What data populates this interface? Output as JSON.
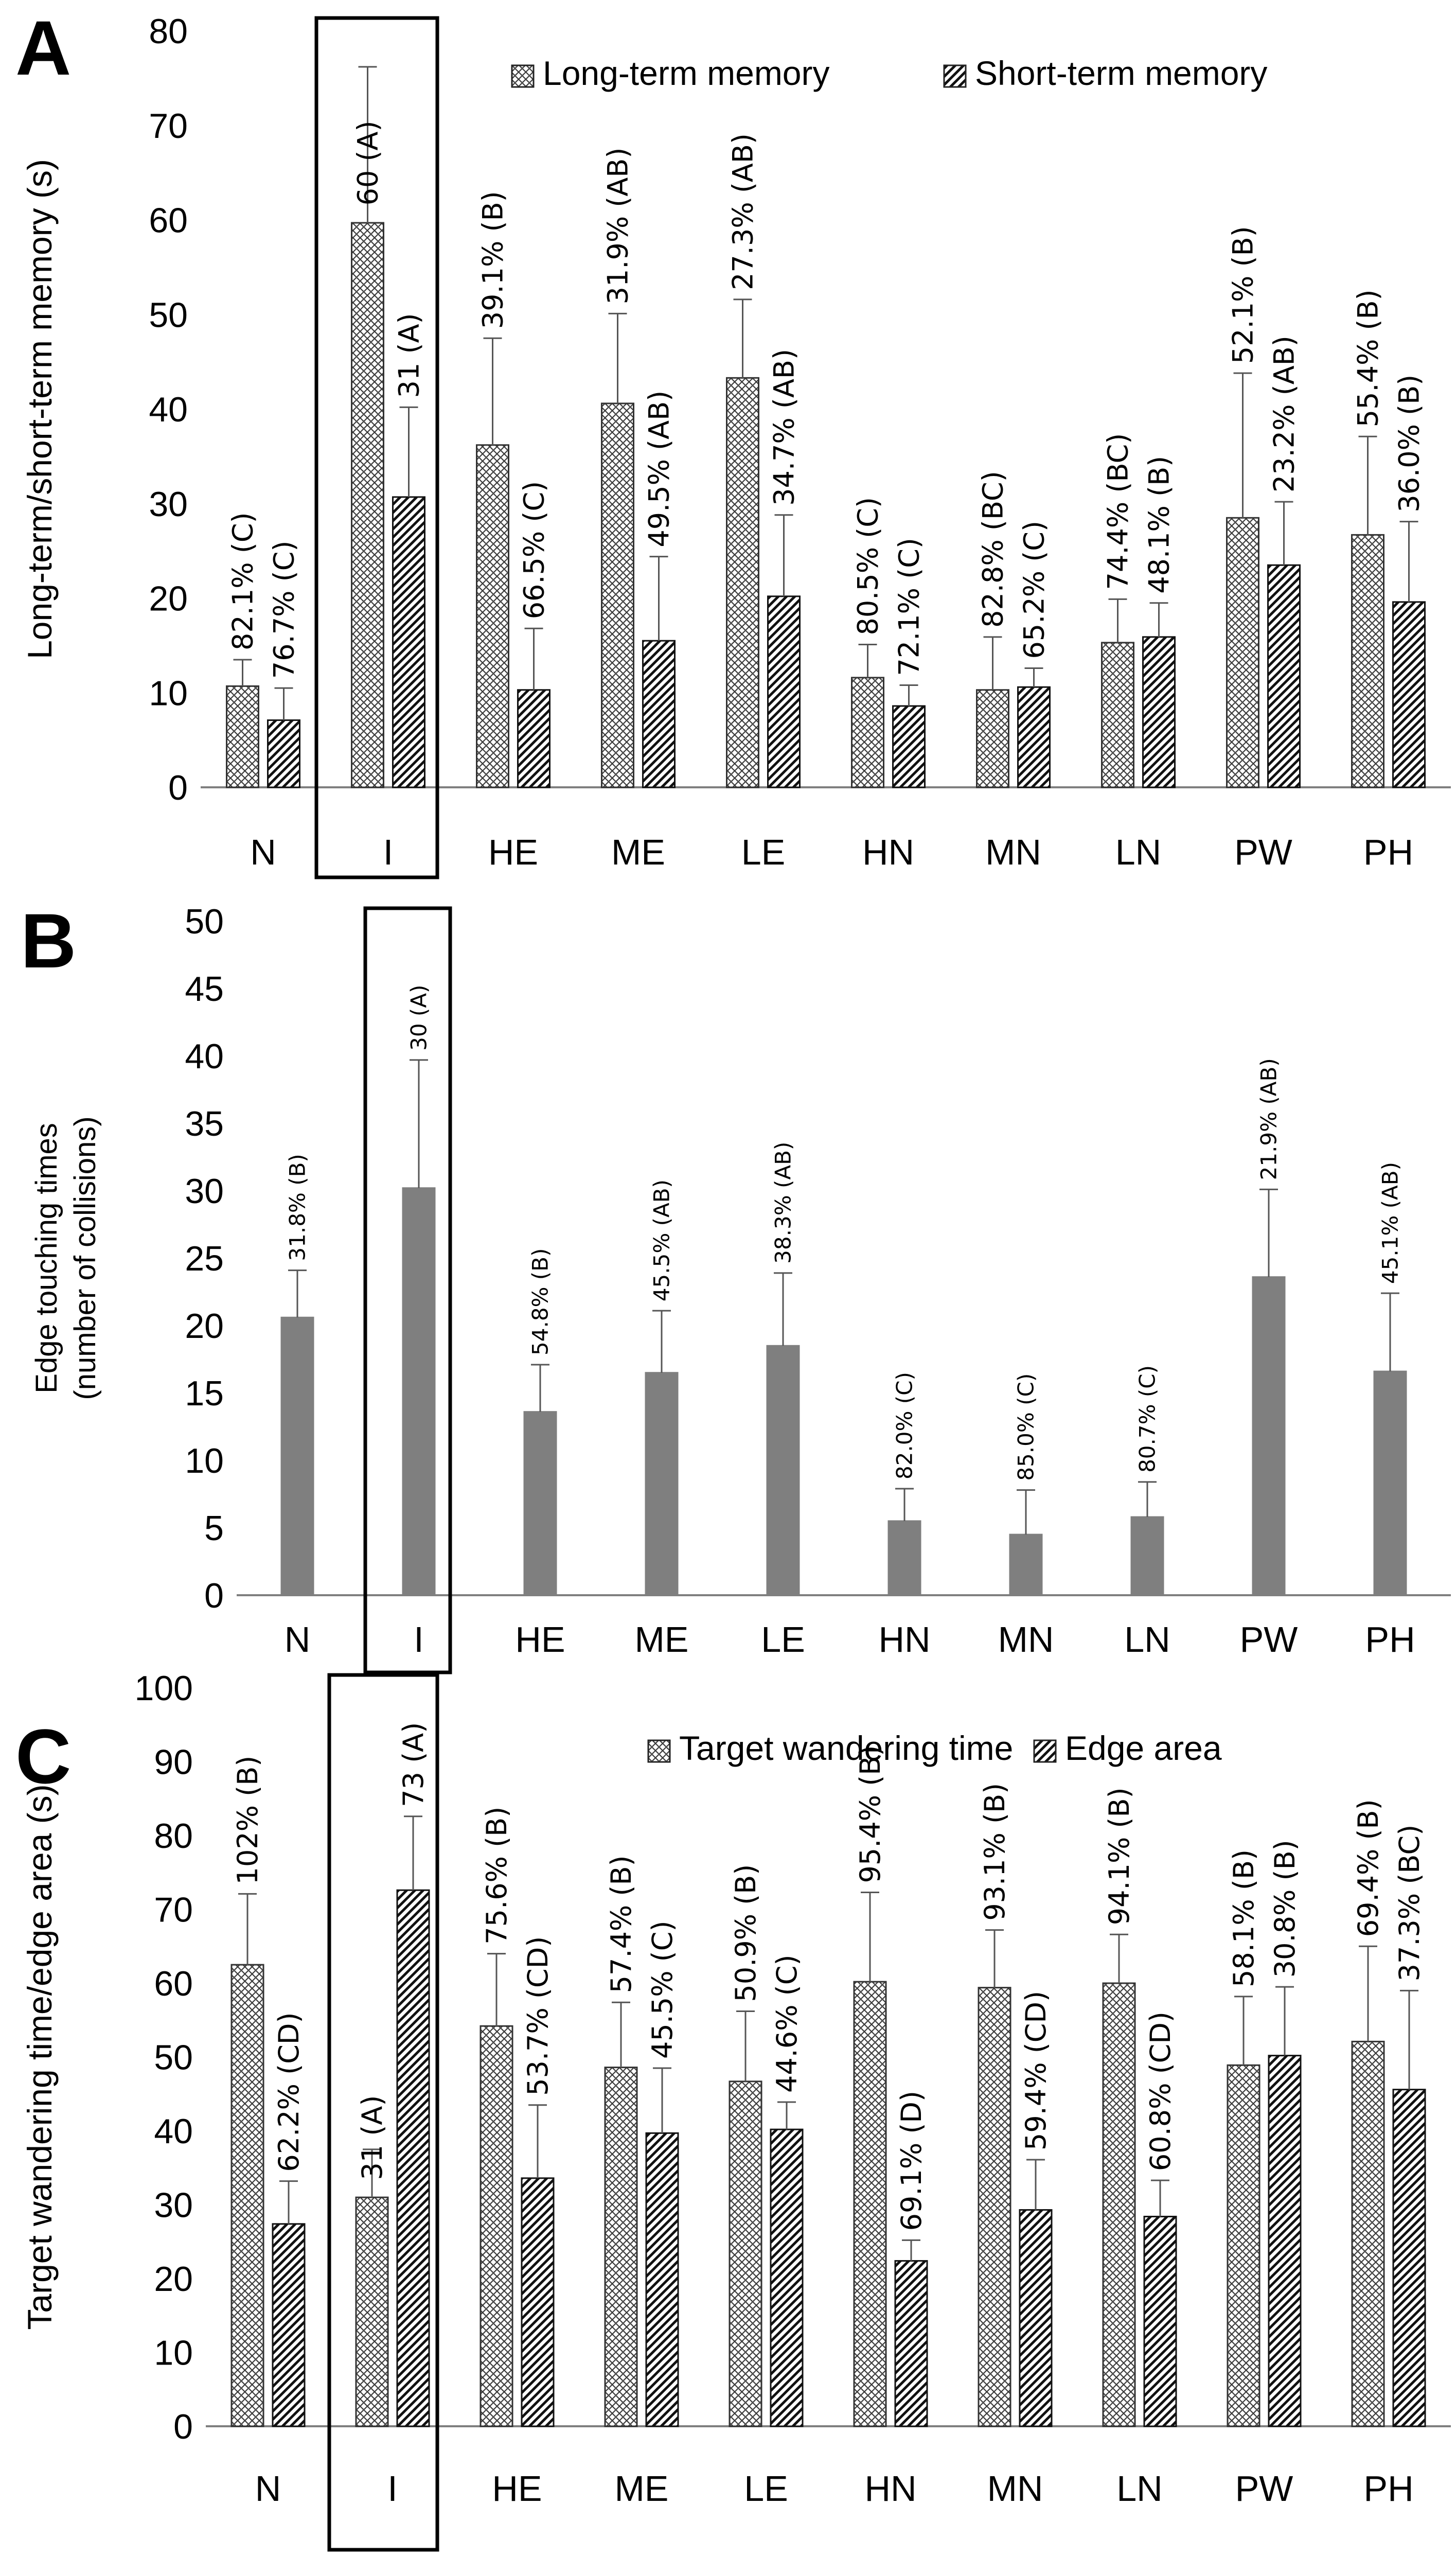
{
  "figure": {
    "categories": [
      "N",
      "I",
      "HE",
      "ME",
      "LE",
      "HN",
      "MN",
      "LN",
      "PW",
      "PH"
    ],
    "highlighted_category": "I"
  },
  "chart_data": [
    {
      "panel": "A",
      "type": "bar",
      "ylabel": "Long-term/short-term memory (s)",
      "ylim": [
        0,
        80
      ],
      "yticks": [
        0,
        10,
        20,
        30,
        40,
        50,
        60,
        70,
        80
      ],
      "categories": [
        "N",
        "I",
        "HE",
        "ME",
        "LE",
        "HN",
        "MN",
        "LN",
        "PW",
        "PH"
      ],
      "legend": {
        "position": "top-right"
      },
      "series": [
        {
          "name": "Long-term memory",
          "pattern": "crosshatch",
          "values": [
            10.7,
            59.7,
            36.2,
            40.6,
            43.3,
            11.6,
            10.3,
            15.3,
            28.5,
            26.7
          ],
          "errors": [
            2.8,
            16.5,
            11.3,
            9.5,
            8.3,
            3.5,
            5.6,
            4.6,
            15.3,
            10.4
          ],
          "labels": [
            "82.1% (C)",
            "60 (A)",
            "39.1% (B)",
            "31.9% (AB)",
            "27.3% (AB)",
            "80.5% (C)",
            "82.8% (BC)",
            "74.4% (BC)",
            "52.1% (B)",
            "55.4% (B)"
          ]
        },
        {
          "name": "Short-term memory",
          "pattern": "diagonal",
          "values": [
            7.1,
            30.7,
            10.3,
            15.5,
            20.2,
            8.6,
            10.6,
            15.9,
            23.5,
            19.6
          ],
          "errors": [
            3.4,
            9.5,
            6.5,
            8.9,
            8.6,
            2.2,
            2.0,
            3.6,
            6.7,
            8.5
          ],
          "labels": [
            "76.7% (C)",
            "31 (A)",
            "66.5% (C)",
            "49.5% (AB)",
            "34.7% (AB)",
            "72.1% (C)",
            "65.2% (C)",
            "48.1% (B)",
            "23.2% (AB)",
            "36.0% (B)"
          ]
        }
      ]
    },
    {
      "panel": "B",
      "type": "bar",
      "ylabel": [
        "Edge touching times",
        "(number of collisions)"
      ],
      "ylim": [
        0,
        50
      ],
      "yticks": [
        0,
        5,
        10,
        15,
        20,
        25,
        30,
        35,
        40,
        45,
        50
      ],
      "categories": [
        "N",
        "I",
        "HE",
        "ME",
        "LE",
        "HN",
        "MN",
        "LN",
        "PW",
        "PH"
      ],
      "series": [
        {
          "name": "Edge touching times",
          "pattern": "solid-gray",
          "values": [
            20.6,
            30.2,
            13.6,
            16.5,
            18.5,
            5.5,
            4.5,
            5.8,
            23.6,
            16.6
          ],
          "errors": [
            3.5,
            9.5,
            3.5,
            4.6,
            5.4,
            2.4,
            3.3,
            2.6,
            6.5,
            5.8
          ],
          "labels": [
            "31.8% (B)",
            "30 (A)",
            "54.8% (B)",
            "45.5% (AB)",
            "38.3% (AB)",
            "82.0% (C)",
            "85.0% (C)",
            "80.7% (C)",
            "21.9% (AB)",
            "45.1% (AB)"
          ]
        }
      ]
    },
    {
      "panel": "C",
      "type": "bar",
      "ylabel": "Target wandering time/edge area (s)",
      "ylim": [
        0,
        100
      ],
      "yticks": [
        0,
        10,
        20,
        30,
        40,
        50,
        60,
        70,
        80,
        90,
        100
      ],
      "categories": [
        "N",
        "I",
        "HE",
        "ME",
        "LE",
        "HN",
        "MN",
        "LN",
        "PW",
        "PH"
      ],
      "legend": {
        "position": "top-right"
      },
      "series": [
        {
          "name": "Target wandering time",
          "pattern": "crosshatch",
          "values": [
            62.5,
            31.0,
            54.2,
            48.6,
            46.7,
            60.2,
            59.4,
            60.0,
            48.9,
            52.1
          ],
          "errors": [
            9.6,
            6.5,
            9.8,
            8.8,
            9.5,
            12.1,
            7.8,
            6.6,
            9.3,
            12.9
          ],
          "labels": [
            "102% (B)",
            "31 (A)",
            "75.6% (B)",
            "57.4% (B)",
            "50.9% (B)",
            "95.4% (B)",
            "93.1% (B)",
            "94.1% (B)",
            "58.1% (B)",
            "69.4% (B)"
          ]
        },
        {
          "name": "Edge area",
          "pattern": "diagonal",
          "values": [
            27.4,
            72.6,
            33.6,
            39.7,
            40.2,
            22.4,
            29.3,
            28.4,
            50.2,
            45.6
          ],
          "errors": [
            5.8,
            10.0,
            9.9,
            8.8,
            3.7,
            2.8,
            6.8,
            4.9,
            9.3,
            13.4
          ],
          "labels": [
            "62.2% (CD)",
            "73 (A)",
            "53.7% (CD)",
            "45.5% (C)",
            "44.6% (C)",
            "69.1% (D)",
            "59.4% (CD)",
            "60.8% (CD)",
            "30.8% (B)",
            "37.3% (BC)"
          ]
        }
      ]
    }
  ],
  "panels_text": {
    "A": "A",
    "B": "B",
    "C": "C"
  }
}
